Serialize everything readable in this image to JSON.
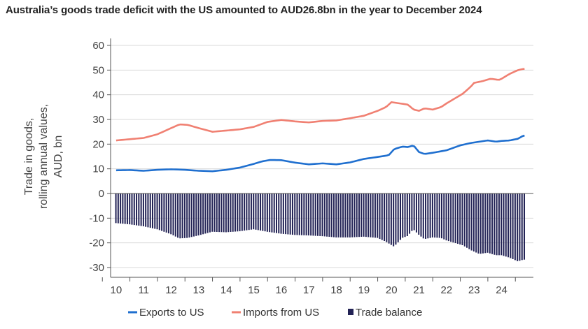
{
  "title": "Australia’s goods trade deficit with the US amounted to AUD26.8bn in the year to December 2024",
  "colors": {
    "exports": "#1f6fcf",
    "imports": "#f08072",
    "balance": "#222255",
    "grid": "#d9d9d9",
    "axis": "#555555"
  },
  "chart_data": {
    "type": "line+bar",
    "title": "Australia’s goods trade deficit with the US amounted to AUD26.8bn in the year to December 2024",
    "ylabel_lines": [
      "Trade in goods,",
      "rolling annual values,",
      "AUD, bn"
    ],
    "ylim": [
      -32,
      60
    ],
    "xlim": [
      2009.8,
      2025.1
    ],
    "yticks": [
      60,
      50,
      40,
      30,
      20,
      10,
      0,
      -10,
      -20,
      -30
    ],
    "ytick_labels": [
      "60",
      "50",
      "40",
      "30",
      "20",
      "10",
      "0",
      "-10",
      "-20",
      "-30"
    ],
    "xtick_labels": [
      "10",
      "11",
      "12",
      "13",
      "14",
      "15",
      "16",
      "17",
      "18",
      "19",
      "20",
      "21",
      "22",
      "23",
      "24"
    ],
    "xtick_years": [
      2010,
      2011,
      2012,
      2013,
      2014,
      2015,
      2016,
      2017,
      2018,
      2019,
      2020,
      2021,
      2022,
      2023,
      2024
    ],
    "grid": "horizontal",
    "legend_placement": "bottom",
    "legend": [
      {
        "label": "Exports to US",
        "kind": "line"
      },
      {
        "label": "Imports from US",
        "kind": "line"
      },
      {
        "label": "Trade balance",
        "kind": "square"
      }
    ],
    "series": [
      {
        "name": "Exports to US",
        "kind": "line",
        "x": [
          2010.0,
          2010.5,
          2011.0,
          2011.5,
          2012.0,
          2012.5,
          2013.0,
          2013.5,
          2014.0,
          2014.5,
          2015.0,
          2015.3,
          2015.6,
          2016.0,
          2016.5,
          2017.0,
          2017.5,
          2018.0,
          2018.5,
          2019.0,
          2019.5,
          2019.9,
          2020.1,
          2020.4,
          2020.6,
          2020.8,
          2021.0,
          2021.2,
          2021.5,
          2022.0,
          2022.5,
          2022.9,
          2023.2,
          2023.5,
          2023.8,
          2024.0,
          2024.3,
          2024.6,
          2024.8
        ],
        "values": [
          9.4,
          9.5,
          9.2,
          9.6,
          9.8,
          9.6,
          9.2,
          9.0,
          9.6,
          10.5,
          12.0,
          13.0,
          13.6,
          13.5,
          12.5,
          11.8,
          12.2,
          11.8,
          12.6,
          14.0,
          14.8,
          15.5,
          18.0,
          19.0,
          18.8,
          19.5,
          16.8,
          16.0,
          16.5,
          17.5,
          19.5,
          20.5,
          21.0,
          21.5,
          21.0,
          21.3,
          21.5,
          22.2,
          23.5
        ]
      },
      {
        "name": "Imports from US",
        "kind": "line",
        "x": [
          2010.0,
          2010.5,
          2011.0,
          2011.5,
          2012.0,
          2012.3,
          2012.6,
          2013.0,
          2013.5,
          2014.0,
          2014.5,
          2015.0,
          2015.5,
          2016.0,
          2016.5,
          2017.0,
          2017.5,
          2018.0,
          2018.5,
          2019.0,
          2019.5,
          2019.8,
          2020.0,
          2020.3,
          2020.6,
          2020.8,
          2021.0,
          2021.2,
          2021.5,
          2021.8,
          2022.0,
          2022.3,
          2022.6,
          2022.9,
          2023.0,
          2023.3,
          2023.6,
          2023.9,
          2024.0,
          2024.3,
          2024.6,
          2024.8
        ],
        "values": [
          21.5,
          22.0,
          22.5,
          24.0,
          26.5,
          28.0,
          27.8,
          26.5,
          25.0,
          25.5,
          26.0,
          27.0,
          29.0,
          29.8,
          29.2,
          28.8,
          29.4,
          29.6,
          30.5,
          31.5,
          33.5,
          35.0,
          37.0,
          36.5,
          36.0,
          34.0,
          33.5,
          34.5,
          34.0,
          35.0,
          36.5,
          38.5,
          40.5,
          43.5,
          44.8,
          45.5,
          46.5,
          46.0,
          46.5,
          48.5,
          50.0,
          50.5
        ]
      },
      {
        "name": "Trade balance",
        "kind": "bar",
        "x": [
          2010.0,
          2010.5,
          2011.0,
          2011.5,
          2012.0,
          2012.3,
          2012.6,
          2013.0,
          2013.5,
          2014.0,
          2014.5,
          2015.0,
          2015.5,
          2016.0,
          2016.5,
          2017.0,
          2017.5,
          2018.0,
          2018.5,
          2019.0,
          2019.5,
          2019.8,
          2020.1,
          2020.4,
          2020.6,
          2020.8,
          2021.0,
          2021.2,
          2021.5,
          2021.8,
          2022.0,
          2022.3,
          2022.6,
          2022.9,
          2023.2,
          2023.5,
          2023.8,
          2024.0,
          2024.3,
          2024.6,
          2024.8
        ],
        "values": [
          -12.0,
          -12.5,
          -13.3,
          -14.5,
          -16.5,
          -18.2,
          -18.0,
          -17.0,
          -15.5,
          -15.7,
          -15.3,
          -14.5,
          -15.5,
          -16.3,
          -16.8,
          -17.0,
          -17.3,
          -17.8,
          -17.8,
          -17.5,
          -18.0,
          -19.5,
          -21.5,
          -18.0,
          -17.2,
          -14.5,
          -16.7,
          -18.5,
          -17.8,
          -18.0,
          -19.0,
          -20.0,
          -21.0,
          -23.0,
          -24.5,
          -24.0,
          -25.0,
          -25.0,
          -26.0,
          -27.5,
          -26.8
        ]
      }
    ]
  }
}
